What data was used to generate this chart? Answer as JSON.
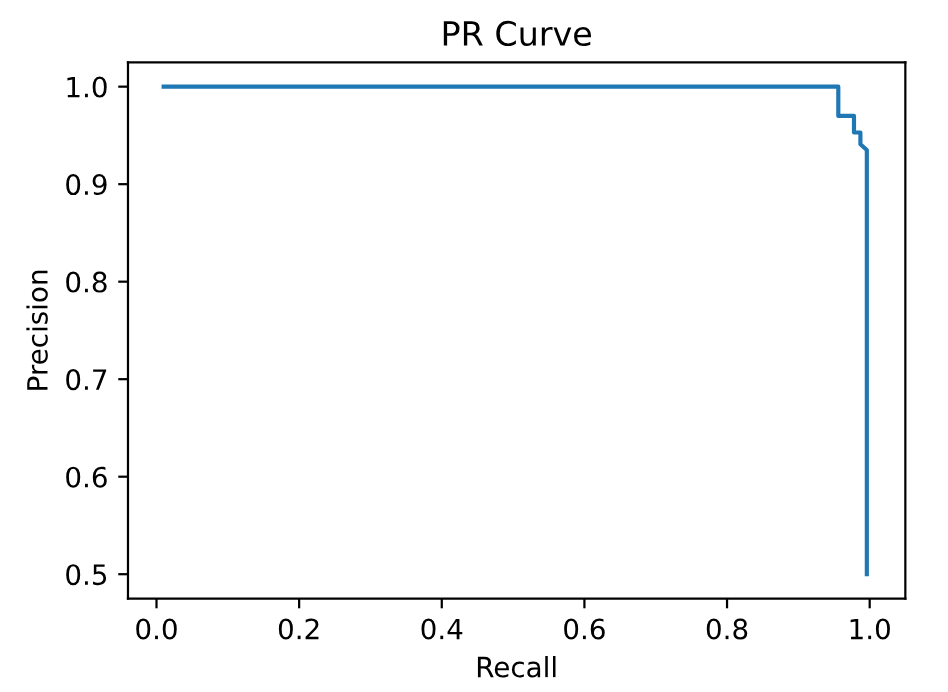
{
  "chart_data": {
    "type": "line",
    "title": "PR Curve",
    "xlabel": "Recall",
    "ylabel": "Precision",
    "series": [
      {
        "color": "#1f77b4",
        "x": [
          0.01,
          0.956,
          0.956,
          0.978,
          0.978,
          0.987,
          0.987,
          0.996,
          0.996
        ],
        "values": [
          1.0,
          1.0,
          0.97,
          0.97,
          0.953,
          0.953,
          0.941,
          0.935,
          0.5
        ]
      }
    ],
    "xlim": [
      -0.04,
      1.05
    ],
    "ylim": [
      0.475,
      1.025
    ],
    "xticks": [
      {
        "value": 0,
        "label": "0.0"
      },
      0.2,
      0.4,
      0.6,
      0.8,
      {
        "value": 1,
        "label": "1.0"
      }
    ],
    "yticks": [
      0.5,
      0.6,
      0.7,
      0.8,
      0.9,
      {
        "value": 1,
        "label": "1.0"
      }
    ],
    "grid": false,
    "legend": false,
    "marker": "none",
    "line_style": "solid"
  }
}
